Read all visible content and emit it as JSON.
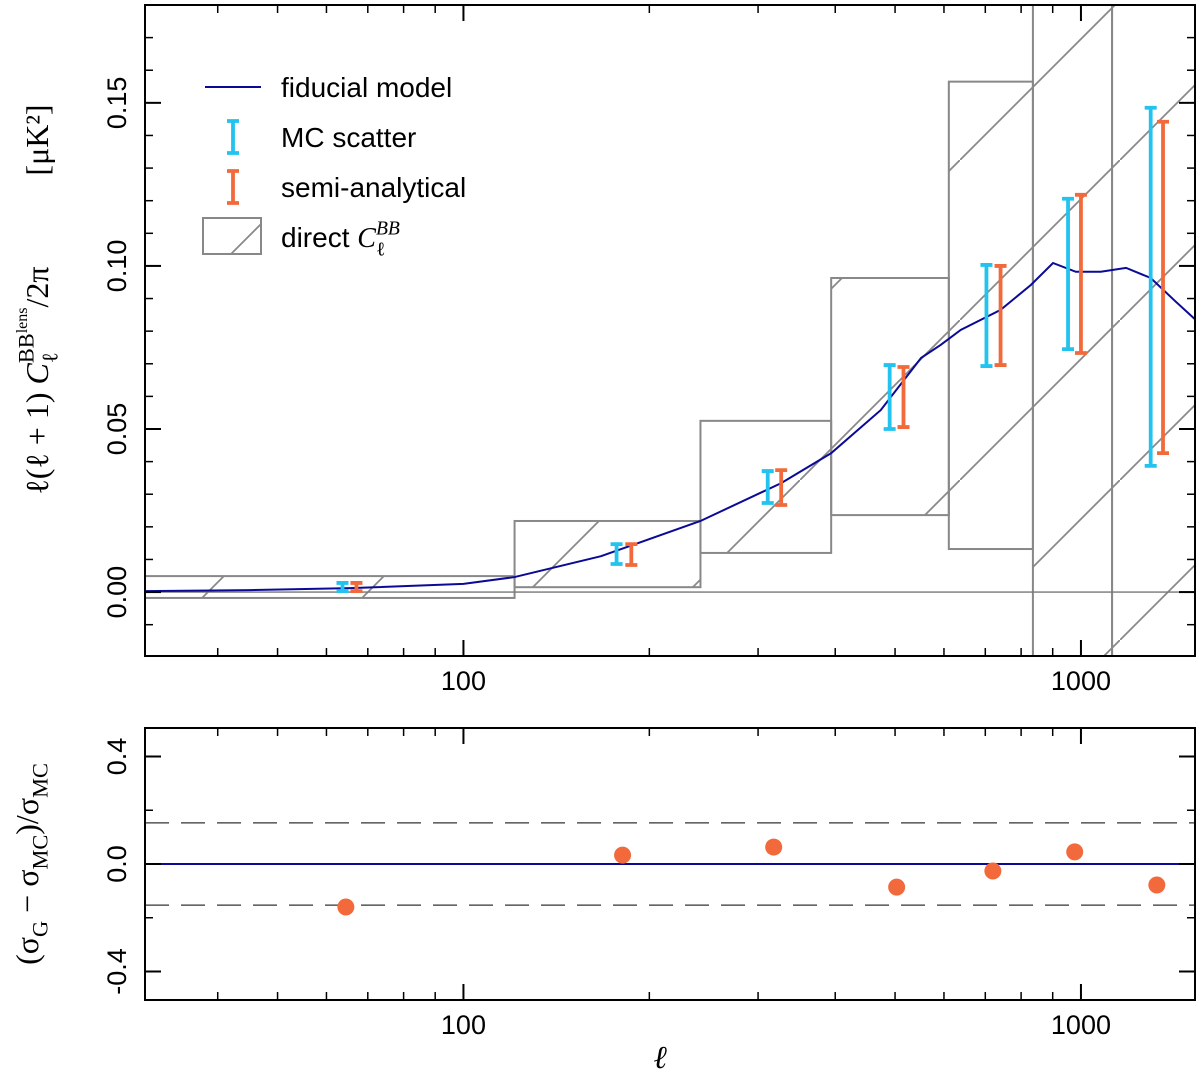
{
  "chart_data": [
    {
      "type": "line",
      "xscale": "log",
      "xlim": [
        30.5,
        1530
      ],
      "xticks": [
        100,
        1000
      ],
      "xminor": [
        40,
        50,
        60,
        70,
        80,
        90,
        200,
        300,
        400,
        500,
        600,
        700,
        800,
        900
      ],
      "ylim": [
        -0.0196,
        0.18
      ],
      "yticks": [
        {
          "value": 0,
          "label": "0.00"
        },
        {
          "value": 0.05,
          "label": "0.05"
        },
        {
          "value": 0.1,
          "label": "0.10"
        },
        {
          "value": 0.15,
          "label": "0.15"
        }
      ],
      "yminor": [
        -0.01,
        0.01,
        0.02,
        0.03,
        0.04,
        0.06,
        0.07,
        0.08,
        0.09,
        0.11,
        0.12,
        0.13,
        0.14,
        0.16,
        0.17
      ],
      "ylabel": [
        {
          "text": "ℓ(ℓ + 1) "
        },
        {
          "text": "C",
          "italic": true
        },
        {
          "text": "ℓ",
          "sub": true
        },
        {
          "text": "BB",
          "sup": true
        },
        {
          "text": "lens",
          "sup2": true
        },
        {
          "text": "/2π"
        }
      ],
      "yunit": "[μK²]",
      "reference_line": 0,
      "boxes": {
        "name": "direct ",
        "name_math": [
          {
            "text": "C",
            "italic": true
          },
          {
            "text": "ℓ",
            "sub": true
          },
          {
            "text": "BB",
            "sup": true,
            "italic": true
          }
        ],
        "color": "#888888",
        "xlo": [
          28,
          121,
          242,
          394,
          611,
          836,
          1123
        ],
        "xhi": [
          121,
          242,
          394,
          611,
          836,
          1123,
          1700
        ],
        "ylo": [
          -0.0018,
          0.0015,
          0.012,
          0.0236,
          0.0132,
          -0.03,
          -0.03
        ],
        "yhi": [
          0.0049,
          0.0218,
          0.0525,
          0.0963,
          0.1565,
          0.19,
          0.19
        ]
      },
      "series": [
        {
          "name": "fiducial model",
          "kind": "line",
          "color": "#0a0a96",
          "x": [
            30.5,
            45.2,
            65.6,
            100,
            121,
            167,
            242,
            327,
            394,
            474,
            551,
            593,
            639,
            741,
            830,
            901,
            981,
            1077,
            1183,
            1297,
            1425,
            1535
          ],
          "values": [
            0.0003,
            0.0006,
            0.0012,
            0.0025,
            0.0046,
            0.011,
            0.0218,
            0.0334,
            0.0426,
            0.0558,
            0.0718,
            0.0758,
            0.0804,
            0.0865,
            0.0942,
            0.1009,
            0.0982,
            0.0982,
            0.0994,
            0.0963,
            0.089,
            0.0834
          ]
        },
        {
          "name": "MC scatter",
          "kind": "errorbar",
          "color": "#22c3ee",
          "x": [
            63.7,
            177,
            311,
            490,
            703,
            953,
            1297
          ],
          "low": [
            0.0003,
            0.0086,
            0.0273,
            0.05,
            0.0693,
            0.0745,
            0.0387
          ],
          "high": [
            0.0028,
            0.0147,
            0.0371,
            0.0696,
            0.1003,
            0.1206,
            0.1485
          ]
        },
        {
          "name": "semi-analytical",
          "kind": "errorbar",
          "color": "#f26a3c",
          "x": [
            67.1,
            187,
            327,
            516,
            741,
            1000,
            1358
          ],
          "low": [
            0.0003,
            0.0083,
            0.0267,
            0.0506,
            0.0696,
            0.0733,
            0.0426
          ],
          "high": [
            0.0028,
            0.0147,
            0.0374,
            0.069,
            0.1,
            0.1218,
            0.1442
          ]
        }
      ]
    },
    {
      "type": "scatter",
      "xscale": "log",
      "xlim": [
        30.5,
        1530
      ],
      "xticks": [
        100,
        1000
      ],
      "xminor": [
        40,
        50,
        60,
        70,
        80,
        90,
        200,
        300,
        400,
        500,
        600,
        700,
        800,
        900
      ],
      "ylim": [
        -0.506,
        0.506
      ],
      "yticks": [
        -0.4,
        {
          "value": 0,
          "label": "0.0"
        },
        0.4
      ],
      "yminor": [
        -0.2,
        0.2
      ],
      "ylabel": [
        {
          "text": "(σ"
        },
        {
          "text": "G",
          "sub": true
        },
        {
          "text": " − σ"
        },
        {
          "text": "MC",
          "sub": true
        },
        {
          "text": ")/σ"
        },
        {
          "text": "MC",
          "sub": true
        }
      ],
      "xlabel": "ℓ",
      "reference_line": 0,
      "reference_color": "#0a0a96",
      "dashed_lines": [
        0.153,
        -0.153
      ],
      "series": [
        {
          "color": "#f26a3c",
          "x": [
            64.5,
            181,
            318,
            503,
            720,
            977,
            1327
          ],
          "values": [
            -0.16,
            0.033,
            0.063,
            -0.086,
            -0.026,
            0.045,
            -0.078
          ]
        }
      ]
    }
  ]
}
